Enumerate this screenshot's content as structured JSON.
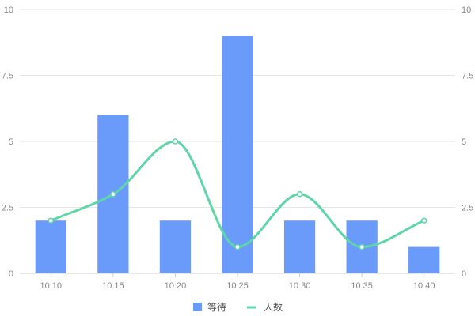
{
  "colors": {
    "bar": "#6a9bfb",
    "line": "#5fd6a7",
    "grid": "#e6e6e6",
    "axis": "#cccccc",
    "tick_text": "#888888"
  },
  "chart_data": {
    "type": "bar",
    "title": "",
    "xlabel": "",
    "ylabel": "",
    "categories": [
      "10:10",
      "10:15",
      "10:20",
      "10:25",
      "10:30",
      "10:35",
      "10:40"
    ],
    "ylim": [
      0,
      10
    ],
    "y_ticks": [
      "0",
      "2.5",
      "5",
      "7.5",
      "10"
    ],
    "y2_ticks": [
      "0",
      "2.5",
      "5",
      "7.5",
      "10"
    ],
    "grid": true,
    "legend_position": "bottom-center",
    "series": [
      {
        "name": "等待",
        "type": "bar",
        "axis": "left",
        "values": [
          2,
          6,
          2,
          9,
          2,
          2,
          1
        ]
      },
      {
        "name": "人数",
        "type": "line",
        "smooth": true,
        "axis": "right",
        "values": [
          2,
          3,
          5,
          1,
          3,
          1,
          2
        ]
      }
    ]
  }
}
